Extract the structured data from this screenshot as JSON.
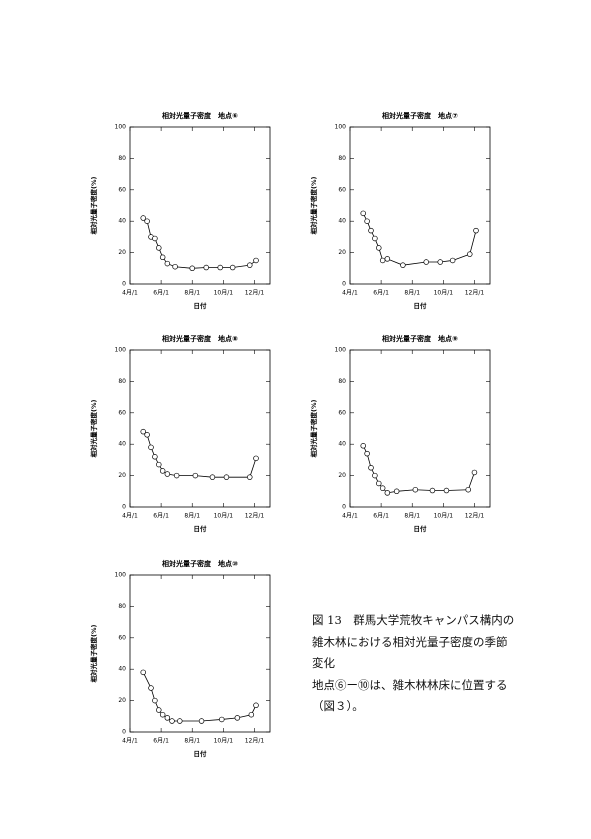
{
  "chart_data": [
    {
      "type": "line",
      "title": "相対光量子密度　地点⑥",
      "xlabel": "日付",
      "ylabel": "相対光量子密度(%)",
      "color": "#000000",
      "x": [
        4.85,
        5.1,
        5.35,
        5.6,
        5.85,
        6.1,
        6.4,
        6.9,
        8.0,
        8.9,
        9.8,
        10.6,
        11.7,
        12.1
      ],
      "values": [
        42,
        40,
        30,
        29,
        23,
        17,
        13,
        11,
        10,
        10.5,
        10.5,
        10.5,
        12,
        15
      ],
      "xlim": [
        4,
        13
      ],
      "ylim": [
        0,
        100
      ],
      "xticks": [
        {
          "value": 4,
          "label": "4月/1"
        },
        {
          "value": 6,
          "label": "6月/1"
        },
        {
          "value": 8,
          "label": "8月/1"
        },
        {
          "value": 10,
          "label": "10月/1"
        },
        {
          "value": 12,
          "label": "12月/1"
        }
      ],
      "yticks": [
        0,
        20,
        40,
        60,
        80,
        100
      ]
    },
    {
      "type": "line",
      "title": "相対光量子密度　地点⑦",
      "xlabel": "日付",
      "ylabel": "相対光量子密度(%)",
      "color": "#000000",
      "x": [
        4.85,
        5.1,
        5.35,
        5.6,
        5.85,
        6.1,
        6.4,
        7.4,
        8.9,
        9.8,
        10.6,
        11.7,
        12.1
      ],
      "values": [
        45,
        40,
        34,
        29,
        23,
        15,
        16,
        12,
        14,
        14,
        15,
        19,
        34
      ],
      "xlim": [
        4,
        13
      ],
      "ylim": [
        0,
        100
      ],
      "xticks": [
        {
          "value": 4,
          "label": "4月/1"
        },
        {
          "value": 6,
          "label": "6月/1"
        },
        {
          "value": 8,
          "label": "8月/1"
        },
        {
          "value": 10,
          "label": "10月/1"
        },
        {
          "value": 12,
          "label": "12月/1"
        }
      ],
      "yticks": [
        0,
        20,
        40,
        60,
        80,
        100
      ]
    },
    {
      "type": "line",
      "title": "相対光量子密度　地点⑧",
      "xlabel": "日付",
      "ylabel": "相対光量子密度(%)",
      "color": "#000000",
      "x": [
        4.85,
        5.1,
        5.35,
        5.6,
        5.85,
        6.1,
        6.4,
        7.0,
        8.2,
        9.3,
        10.2,
        11.7,
        12.1
      ],
      "values": [
        48,
        46,
        38,
        32,
        27,
        23,
        21,
        20,
        20,
        19,
        19,
        19,
        31
      ],
      "xlim": [
        4,
        13
      ],
      "ylim": [
        0,
        100
      ],
      "xticks": [
        {
          "value": 4,
          "label": "4月/1"
        },
        {
          "value": 6,
          "label": "6月/1"
        },
        {
          "value": 8,
          "label": "8月/1"
        },
        {
          "value": 10,
          "label": "10月/1"
        },
        {
          "value": 12,
          "label": "12月/1"
        }
      ],
      "yticks": [
        0,
        20,
        40,
        60,
        80,
        100
      ]
    },
    {
      "type": "line",
      "title": "相対光量子密度　地点⑨",
      "xlabel": "日付",
      "ylabel": "相対光量子密度(%)",
      "color": "#000000",
      "x": [
        4.85,
        5.1,
        5.35,
        5.6,
        5.85,
        6.1,
        6.4,
        7.0,
        8.2,
        9.3,
        10.2,
        11.6,
        12.0
      ],
      "values": [
        39,
        34,
        25,
        20,
        15,
        12,
        9,
        10,
        11,
        10.5,
        10.5,
        11,
        22
      ],
      "xlim": [
        4,
        13
      ],
      "ylim": [
        0,
        100
      ],
      "xticks": [
        {
          "value": 4,
          "label": "4月/1"
        },
        {
          "value": 6,
          "label": "6月/1"
        },
        {
          "value": 8,
          "label": "8月/1"
        },
        {
          "value": 10,
          "label": "10月/1"
        },
        {
          "value": 12,
          "label": "12月/1"
        }
      ],
      "yticks": [
        0,
        20,
        40,
        60,
        80,
        100
      ]
    },
    {
      "type": "line",
      "title": "相対光量子密度　地点⑩",
      "xlabel": "日付",
      "ylabel": "相対光量子密度(%)",
      "color": "#000000",
      "x": [
        4.85,
        5.35,
        5.6,
        5.85,
        6.1,
        6.4,
        6.7,
        7.2,
        8.6,
        9.9,
        10.9,
        11.8,
        12.1
      ],
      "values": [
        38,
        28,
        20,
        14,
        11,
        9,
        7,
        7,
        7,
        8,
        9,
        11,
        17
      ],
      "xlim": [
        4,
        13
      ],
      "ylim": [
        0,
        100
      ],
      "xticks": [
        {
          "value": 4,
          "label": "4月/1"
        },
        {
          "value": 6,
          "label": "6月/1"
        },
        {
          "value": 8,
          "label": "8月/1"
        },
        {
          "value": 10,
          "label": "10月/1"
        },
        {
          "value": 12,
          "label": "12月/1"
        }
      ],
      "yticks": [
        0,
        20,
        40,
        60,
        80,
        100
      ]
    }
  ],
  "caption": {
    "lines": [
      "図 13　群馬大学荒牧キャンパス構内の",
      "雑木林における相対光量子密度の季節",
      "変化",
      "地点⑥ー⑩は、雑木林林床に位置する",
      "（図３）。"
    ]
  }
}
